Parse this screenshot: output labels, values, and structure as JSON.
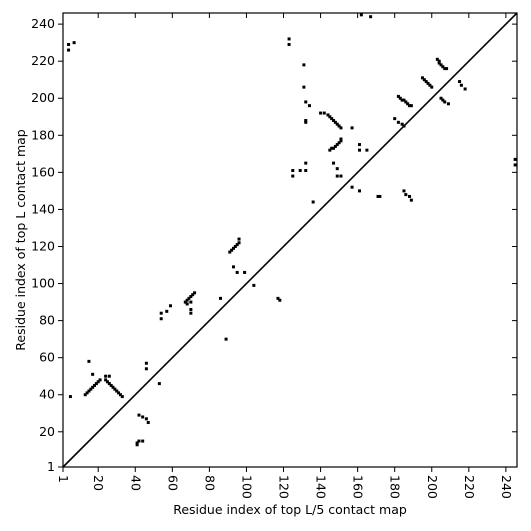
{
  "chart_data": {
    "type": "scatter",
    "x_label": "Residue index of top L/5 contact map",
    "y_label": "Residue index of top L contact map",
    "xlim": [
      1,
      246
    ],
    "ylim": [
      1,
      246
    ],
    "xticks": [
      1,
      20,
      40,
      60,
      80,
      100,
      120,
      140,
      160,
      180,
      200,
      220,
      240
    ],
    "yticks": [
      1,
      20,
      40,
      60,
      80,
      100,
      120,
      140,
      160,
      180,
      200,
      220,
      240
    ],
    "color": "#000000",
    "x": [
      4,
      7,
      4,
      13,
      14,
      15,
      16,
      17,
      18,
      19,
      20,
      21,
      15,
      17,
      5,
      24,
      25,
      26,
      27,
      28,
      29,
      30,
      31,
      32,
      33,
      24,
      26,
      42,
      44,
      46,
      47,
      41,
      41,
      42,
      44,
      46,
      46,
      53,
      54,
      54,
      57,
      59,
      67,
      68,
      69,
      70,
      71,
      72,
      68,
      70,
      70,
      70,
      86,
      89,
      91,
      92,
      93,
      94,
      95,
      96,
      96,
      93,
      95,
      99,
      104,
      117,
      118,
      123,
      123,
      125,
      125,
      129,
      132,
      132,
      131,
      131,
      132,
      134,
      132,
      132,
      136,
      140,
      142,
      144,
      145,
      146,
      147,
      148,
      149,
      150,
      151,
      145,
      146,
      147,
      148,
      149,
      150,
      151,
      151,
      147,
      149,
      149,
      151,
      157,
      157,
      161,
      161,
      161,
      165,
      162,
      167,
      171,
      172,
      182,
      183,
      184,
      185,
      186,
      187,
      188,
      189,
      180,
      182,
      184,
      185,
      185,
      186,
      188,
      189,
      195,
      196,
      197,
      198,
      199,
      200,
      203,
      204,
      204,
      205,
      206,
      207,
      208,
      205,
      206,
      207,
      209,
      215,
      216,
      218,
      245,
      245
    ],
    "y": [
      229,
      230,
      226,
      40,
      41,
      42,
      43,
      44,
      45,
      46,
      47,
      48,
      58,
      51,
      39,
      48,
      47,
      46,
      45,
      44,
      43,
      42,
      41,
      40,
      39,
      50,
      50,
      29,
      28,
      27,
      25,
      14,
      13,
      15,
      15,
      57,
      54,
      46,
      84,
      81,
      85,
      88,
      90,
      91,
      92,
      93,
      94,
      95,
      89,
      90,
      86,
      84,
      92,
      70,
      117,
      118,
      119,
      120,
      121,
      122,
      124,
      109,
      106,
      106,
      99,
      92,
      91,
      232,
      229,
      161,
      158,
      161,
      161,
      165,
      218,
      206,
      198,
      196,
      188,
      187,
      144,
      192,
      192,
      191,
      190,
      189,
      188,
      187,
      186,
      185,
      184,
      172,
      173,
      173,
      174,
      175,
      176,
      177,
      178,
      165,
      162,
      158,
      158,
      184,
      152,
      150,
      175,
      172,
      172,
      245,
      244,
      147,
      147,
      201,
      200,
      199,
      199,
      198,
      197,
      196,
      196,
      189,
      187,
      186,
      185,
      150,
      148,
      147,
      145,
      211,
      210,
      209,
      208,
      207,
      206,
      221,
      220,
      219,
      218,
      217,
      216,
      216,
      200,
      199,
      198,
      197,
      209,
      207,
      205,
      167,
      164
    ]
  }
}
